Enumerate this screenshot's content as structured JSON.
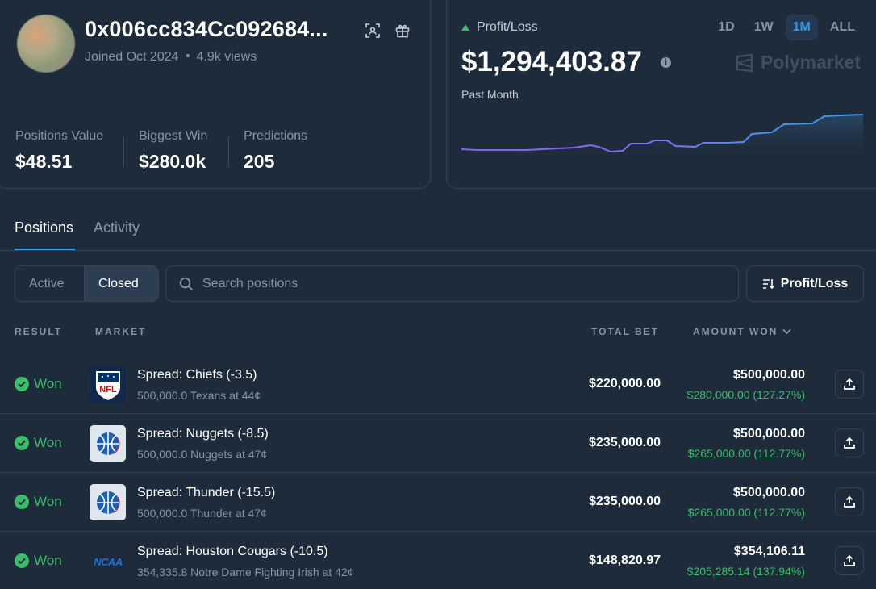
{
  "profile": {
    "username": "0x006cc834Cc092684...",
    "joined": "Joined Oct 2024",
    "views": "4.9k views",
    "stats": [
      {
        "label": "Positions Value",
        "value": "$48.51"
      },
      {
        "label": "Biggest Win",
        "value": "$280.0k"
      },
      {
        "label": "Predictions",
        "value": "205"
      }
    ]
  },
  "pnl": {
    "label": "Profit/Loss",
    "value": "$1,294,403.87",
    "period": "Past Month",
    "brand": "Polymarket",
    "ranges": [
      "1D",
      "1W",
      "1M",
      "ALL"
    ],
    "active_range": "1M",
    "colors": {
      "up": "#3dbd6a",
      "line_start": "#8b5cf6",
      "line_end": "#3b9bf0"
    }
  },
  "tabs": [
    {
      "label": "Positions",
      "active": true
    },
    {
      "label": "Activity",
      "active": false
    }
  ],
  "filter": {
    "segments": [
      "Active",
      "Closed"
    ],
    "active_segment": "Closed",
    "search_placeholder": "Search positions",
    "sort_label": "Profit/Loss"
  },
  "table": {
    "headers": {
      "result": "RESULT",
      "market": "MARKET",
      "total_bet": "TOTAL BET",
      "amount_won": "AMOUNT WON"
    },
    "rows": [
      {
        "result": "Won",
        "logo": "nfl-logo-icon",
        "title": "Spread: Chiefs (-3.5)",
        "subtitle": "500,000.0 Texans at 44¢",
        "total_bet": "$220,000.00",
        "amount_won": "$500,000.00",
        "gain": "$280,000.00 (127.27%)"
      },
      {
        "result": "Won",
        "logo": "basketball-icon",
        "title": "Spread: Nuggets (-8.5)",
        "subtitle": "500,000.0 Nuggets at 47¢",
        "total_bet": "$235,000.00",
        "amount_won": "$500,000.00",
        "gain": "$265,000.00 (112.77%)"
      },
      {
        "result": "Won",
        "logo": "basketball-icon",
        "title": "Spread: Thunder (-15.5)",
        "subtitle": "500,000.0 Thunder at 47¢",
        "total_bet": "$235,000.00",
        "amount_won": "$500,000.00",
        "gain": "$265,000.00 (112.77%)"
      },
      {
        "result": "Won",
        "logo": "ncaa-logo-icon",
        "title": "Spread: Houston Cougars (-10.5)",
        "subtitle": "354,335.8 Notre Dame Fighting Irish at 42¢",
        "total_bet": "$148,820.97",
        "amount_won": "$354,106.11",
        "gain": "$205,285.14 (137.94%)"
      }
    ]
  }
}
